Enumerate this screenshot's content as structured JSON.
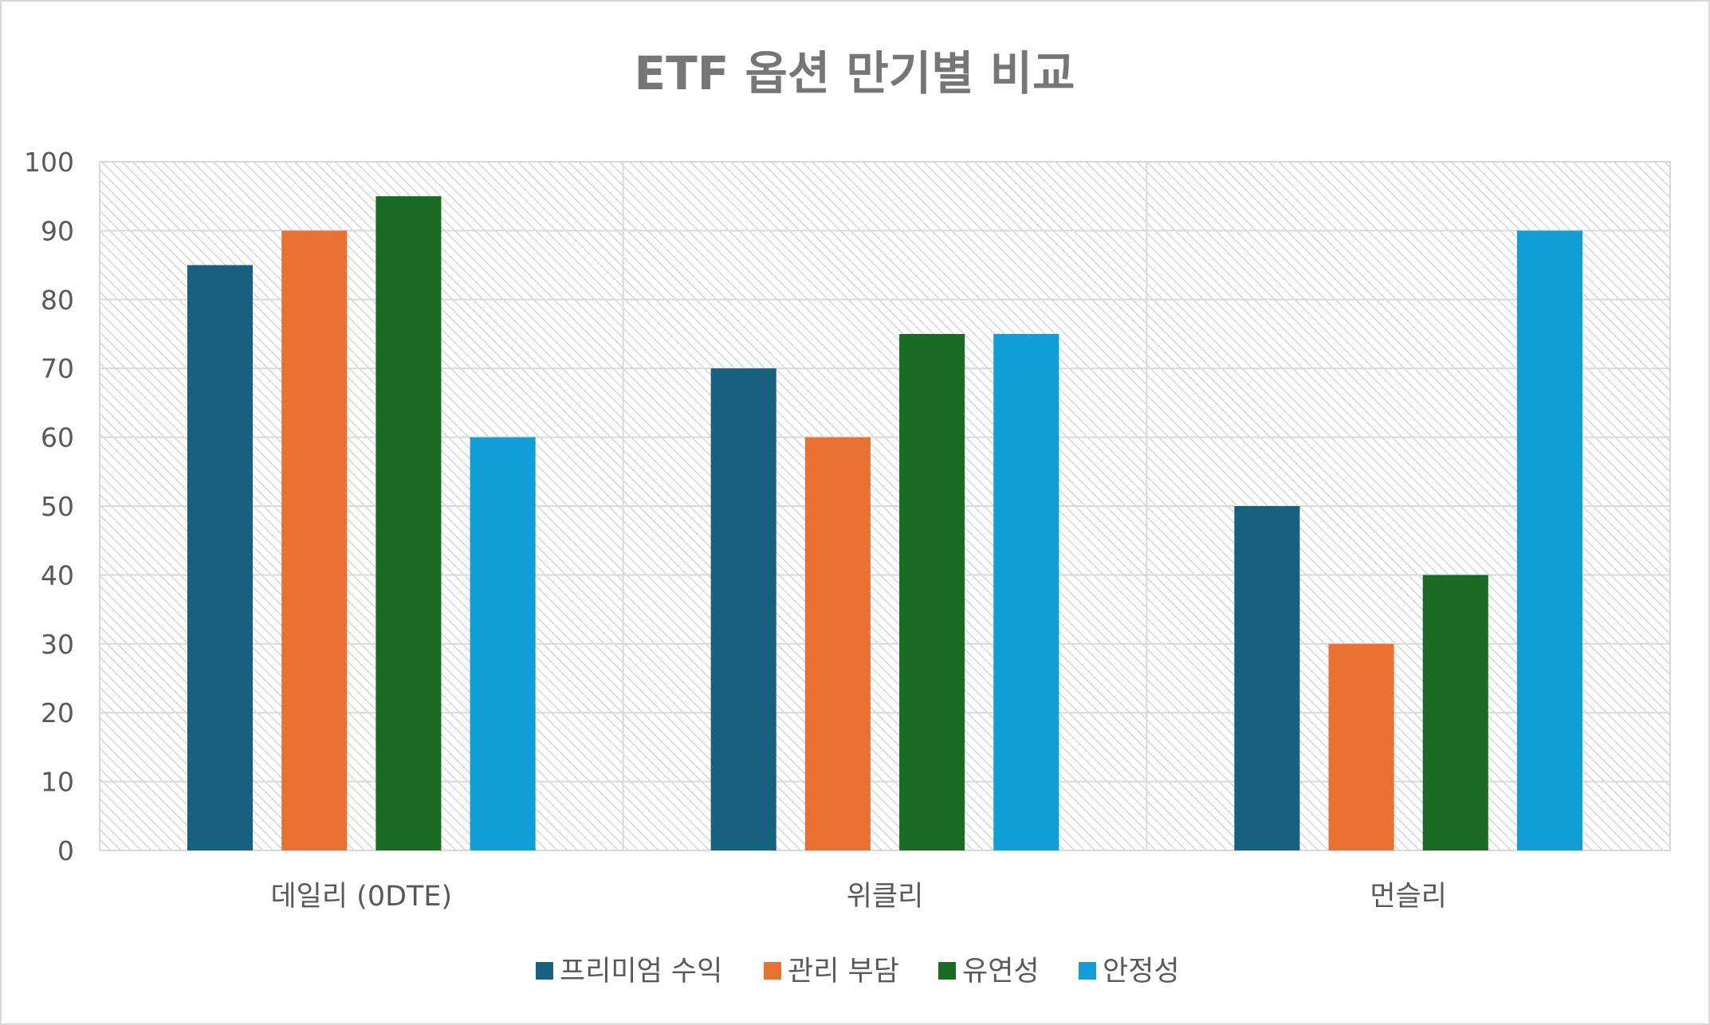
{
  "chart_data": {
    "type": "bar",
    "title": "ETF 옵션 만기별 비교",
    "xlabel": "",
    "ylabel": "",
    "ylim": [
      0,
      100
    ],
    "yticks": [
      "0",
      "10",
      "20",
      "30",
      "40",
      "50",
      "60",
      "70",
      "80",
      "90",
      "100"
    ],
    "categories": [
      "데일리 (0DTE)",
      "위클리",
      "먼슬리"
    ],
    "series": [
      {
        "name": "프리미엄 수익",
        "color": "#17607f",
        "values": [
          85,
          70,
          50
        ]
      },
      {
        "name": "관리 부담",
        "color": "#e97232",
        "values": [
          90,
          60,
          30
        ]
      },
      {
        "name": "유연성",
        "color": "#1a6b24",
        "values": [
          95,
          75,
          40
        ]
      },
      {
        "name": "안정성",
        "color": "#129fd7",
        "values": [
          60,
          75,
          90
        ]
      }
    ],
    "grid": true,
    "legend_position": "bottom"
  }
}
